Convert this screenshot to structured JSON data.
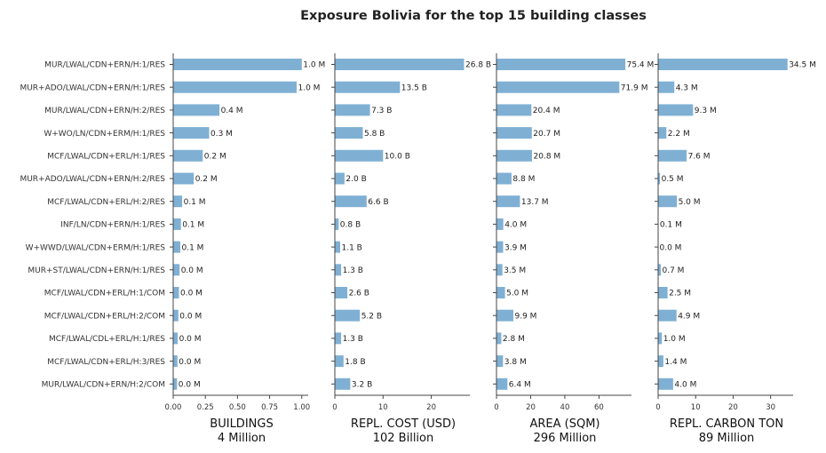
{
  "chart_data": {
    "type": "bar",
    "orientation": "horizontal",
    "title": "Exposure Bolivia for the top 15 building classes",
    "categories": [
      "MUR/LWAL/CDN+ERN/H:1/RES",
      "MUR+ADO/LWAL/CDN+ERN/H:1/RES",
      "MUR/LWAL/CDN+ERN/H:2/RES",
      "W+WO/LN/CDN+ERM/H:1/RES",
      "MCF/LWAL/CDN+ERL/H:1/RES",
      "MUR+ADO/LWAL/CDN+ERN/H:2/RES",
      "MCF/LWAL/CDN+ERL/H:2/RES",
      "INF/LN/CDN+ERN/H:1/RES",
      "W+WWD/LWAL/CDN+ERM/H:1/RES",
      "MUR+ST/LWAL/CDN+ERN/H:1/RES",
      "MCF/LWAL/CDN+ERL/H:1/COM",
      "MCF/LWAL/CDN+ERL/H:2/COM",
      "MCF/LWAL/CDL+ERL/H:1/RES",
      "MCF/LWAL/CDN+ERL/H:3/RES",
      "MUR/LWAL/CDN+ERN/H:2/COM"
    ],
    "color": "#7fb0d4",
    "panels": [
      {
        "xlabel": "BUILDINGS",
        "total": "4 Million",
        "xlim": [
          0,
          1.05
        ],
        "ticks": [
          0,
          0.25,
          0.5,
          0.75,
          1.0
        ],
        "tick_labels": [
          "0.00",
          "0.25",
          "0.50",
          "0.75",
          "1.00"
        ],
        "show_category_labels": true,
        "values": [
          1.0,
          0.96,
          0.36,
          0.28,
          0.23,
          0.16,
          0.07,
          0.06,
          0.055,
          0.05,
          0.045,
          0.04,
          0.035,
          0.033,
          0.03
        ],
        "labels": [
          "1.0 M",
          "1.0 M",
          "0.4 M",
          "0.3 M",
          "0.2 M",
          "0.2 M",
          "0.1 M",
          "0.1 M",
          "0.1 M",
          "0.0 M",
          "0.0 M",
          "0.0 M",
          "0.0 M",
          "0.0 M",
          "0.0 M"
        ]
      },
      {
        "xlabel": "REPL. COST (USD)",
        "total": "102 Billion",
        "xlim": [
          0,
          28
        ],
        "ticks": [
          0,
          10,
          20
        ],
        "tick_labels": [
          "0",
          "10",
          "20"
        ],
        "show_category_labels": false,
        "values": [
          26.8,
          13.5,
          7.3,
          5.8,
          10.0,
          2.0,
          6.6,
          0.8,
          1.1,
          1.3,
          2.6,
          5.2,
          1.3,
          1.8,
          3.2
        ],
        "labels": [
          "26.8 B",
          "13.5 B",
          "7.3 B",
          "5.8 B",
          "10.0 B",
          "2.0 B",
          "6.6 B",
          "0.8 B",
          "1.1 B",
          "1.3 B",
          "2.6 B",
          "5.2 B",
          "1.3 B",
          "1.8 B",
          "3.2 B"
        ]
      },
      {
        "xlabel": "AREA (SQM)",
        "total": "296 Million",
        "xlim": [
          0,
          79
        ],
        "ticks": [
          0,
          20,
          40,
          60
        ],
        "tick_labels": [
          "0",
          "20",
          "40",
          "60"
        ],
        "show_category_labels": false,
        "values": [
          75.4,
          71.9,
          20.4,
          20.7,
          20.8,
          8.8,
          13.7,
          4.0,
          3.9,
          3.5,
          5.0,
          9.9,
          2.8,
          3.8,
          6.4
        ],
        "labels": [
          "75.4 M",
          "71.9 M",
          "20.4 M",
          "20.7 M",
          "20.8 M",
          "8.8 M",
          "13.7 M",
          "4.0 M",
          "3.9 M",
          "3.5 M",
          "5.0 M",
          "9.9 M",
          "2.8 M",
          "3.8 M",
          "6.4 M"
        ]
      },
      {
        "xlabel": "REPL. CARBON TON",
        "total": "89 Million",
        "xlim": [
          0,
          36
        ],
        "ticks": [
          0,
          10,
          20,
          30
        ],
        "tick_labels": [
          "0",
          "10",
          "20",
          "30"
        ],
        "show_category_labels": false,
        "values": [
          34.5,
          4.3,
          9.3,
          2.2,
          7.6,
          0.5,
          5.0,
          0.1,
          0.0,
          0.7,
          2.5,
          4.9,
          1.0,
          1.4,
          4.0
        ],
        "labels": [
          "34.5 M",
          "4.3 M",
          "9.3 M",
          "2.2 M",
          "7.6 M",
          "0.5 M",
          "5.0 M",
          "0.1 M",
          "0.0 M",
          "0.7 M",
          "2.5 M",
          "4.9 M",
          "1.0 M",
          "1.4 M",
          "4.0 M"
        ]
      }
    ]
  }
}
